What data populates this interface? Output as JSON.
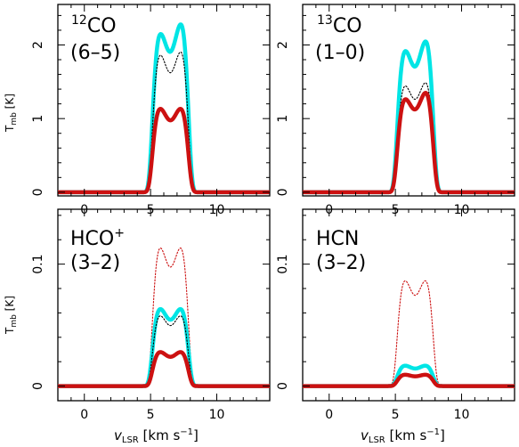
{
  "chart_data": [
    {
      "type": "line",
      "panel": "top-left",
      "label_sup": "12",
      "label_main": "CO",
      "transition": "(6–5)",
      "ylabel": "T",
      "ylabel_sub": "mb",
      "ylabel_unit": "[K]",
      "xlim": [
        -2,
        14
      ],
      "ylim": [
        -0.05,
        2.55
      ],
      "xticks": [
        0,
        5,
        10
      ],
      "yticks": [
        0,
        1,
        2
      ],
      "ytick_labels": [
        "0",
        "1",
        "2"
      ],
      "series": [
        {
          "color": "#00e5e5",
          "style": "thick",
          "peaks": [
            2.3,
            2.45
          ]
        },
        {
          "color": "#000000",
          "style": "dotted",
          "peaks": [
            2.0,
            2.05
          ]
        },
        {
          "color": "#cc1111",
          "style": "thick",
          "peaks": [
            1.22,
            1.22
          ]
        }
      ]
    },
    {
      "type": "line",
      "panel": "top-right",
      "label_sup": "13",
      "label_main": "CO",
      "transition": "(1–0)",
      "xlim": [
        -2,
        14
      ],
      "ylim": [
        -0.05,
        2.55
      ],
      "xticks": [
        0,
        5,
        10
      ],
      "yticks": [
        0,
        1,
        2
      ],
      "ytick_labels": [
        "0",
        "1",
        "2"
      ],
      "series": [
        {
          "color": "#00e5e5",
          "style": "thick",
          "peaks": [
            2.05,
            2.2
          ]
        },
        {
          "color": "#000000",
          "style": "dotted",
          "peaks": [
            1.55,
            1.6
          ]
        },
        {
          "color": "#cc1111",
          "style": "thick",
          "peaks": [
            1.35,
            1.45
          ]
        }
      ]
    },
    {
      "type": "line",
      "panel": "bottom-left",
      "label_main": "HCO",
      "label_sup_after": "+",
      "transition": "(3–2)",
      "ylabel": "T",
      "ylabel_sub": "mb",
      "ylabel_unit": "[K]",
      "xlim": [
        -2,
        14
      ],
      "ylim": [
        -0.012,
        0.145
      ],
      "xticks": [
        0,
        5,
        10
      ],
      "yticks": [
        0,
        0.1
      ],
      "ytick_labels": [
        "0",
        "0.1"
      ],
      "series": [
        {
          "color": "#cc1111",
          "style": "dotted",
          "peaks": [
            0.122,
            0.122
          ]
        },
        {
          "color": "#00e5e5",
          "style": "thick",
          "peaks": [
            0.068,
            0.068
          ]
        },
        {
          "color": "#000000",
          "style": "dotted",
          "peaks": [
            0.062,
            0.062
          ]
        },
        {
          "color": "#cc1111",
          "style": "thick",
          "peaks": [
            0.03,
            0.03
          ]
        }
      ],
      "xlabel": "v",
      "xlabel_sub": "LSR",
      "xlabel_unit": "[km s",
      "xlabel_exp": "−1",
      "xlabel_close": "]"
    },
    {
      "type": "line",
      "panel": "bottom-right",
      "label_main": "HCN",
      "transition": "(3–2)",
      "xlim": [
        -2,
        14
      ],
      "ylim": [
        -0.012,
        0.145
      ],
      "xticks": [
        0,
        5,
        10
      ],
      "yticks": [
        0,
        0.1
      ],
      "ytick_labels": [
        "0",
        "0.1"
      ],
      "series": [
        {
          "color": "#cc1111",
          "style": "dotted",
          "peaks": [
            0.093,
            0.093
          ]
        },
        {
          "color": "#00e5e5",
          "style": "thick",
          "peaks": [
            0.018,
            0.018
          ]
        },
        {
          "color": "#cc1111",
          "style": "thick",
          "peaks": [
            0.01,
            0.01
          ]
        }
      ],
      "xlabel": "v",
      "xlabel_sub": "LSR",
      "xlabel_unit": "[km s",
      "xlabel_exp": "−1",
      "xlabel_close": "]"
    }
  ]
}
